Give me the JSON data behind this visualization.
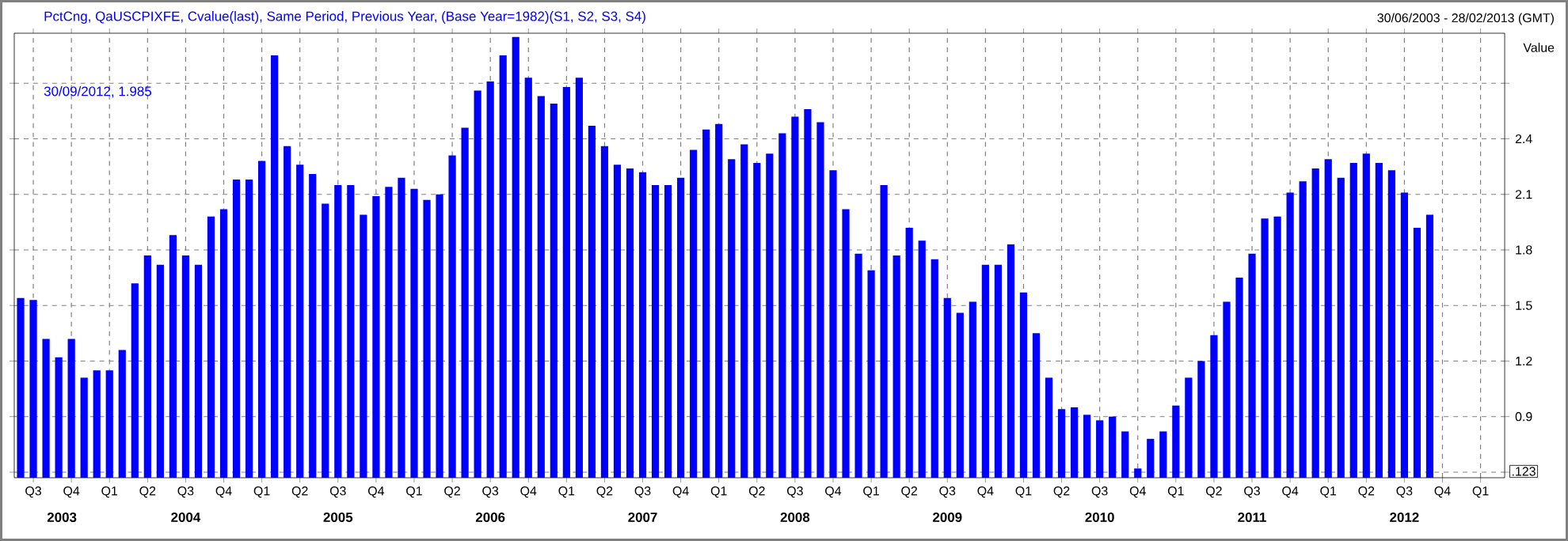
{
  "chart_data": {
    "type": "bar",
    "title": "PctCng, QaUSCPIXFE, Cvalue(last), Same Period, Previous Year, (Base Year=1982)(S1, S2, S3, S4)",
    "subtitle": "30/09/2012, 1.985",
    "ylabel": "Value",
    "color": "#0000ff",
    "x": [
      "2003-06",
      "2003-07",
      "2003-08",
      "2003-09",
      "2003-10",
      "2003-11",
      "2003-12",
      "2004-01",
      "2004-02",
      "2004-03",
      "2004-04",
      "2004-05",
      "2004-06",
      "2004-07",
      "2004-08",
      "2004-09",
      "2004-10",
      "2004-11",
      "2004-12",
      "2005-01",
      "2005-02",
      "2005-03",
      "2005-04",
      "2005-05",
      "2005-06",
      "2005-07",
      "2005-08",
      "2005-09",
      "2005-10",
      "2005-11",
      "2005-12",
      "2006-01",
      "2006-02",
      "2006-03",
      "2006-04",
      "2006-05",
      "2006-06",
      "2006-07",
      "2006-08",
      "2006-09",
      "2006-10",
      "2006-11",
      "2006-12",
      "2007-01",
      "2007-02",
      "2007-03",
      "2007-04",
      "2007-05",
      "2007-06",
      "2007-07",
      "2007-08",
      "2007-09",
      "2007-10",
      "2007-11",
      "2007-12",
      "2008-01",
      "2008-02",
      "2008-03",
      "2008-04",
      "2008-05",
      "2008-06",
      "2008-07",
      "2008-08",
      "2008-09",
      "2008-10",
      "2008-11",
      "2008-12",
      "2009-01",
      "2009-02",
      "2009-03",
      "2009-04",
      "2009-05",
      "2009-06",
      "2009-07",
      "2009-08",
      "2009-09",
      "2009-10",
      "2009-11",
      "2009-12",
      "2010-01",
      "2010-02",
      "2010-03",
      "2010-04",
      "2010-05",
      "2010-06",
      "2010-07",
      "2010-08",
      "2010-09",
      "2010-10",
      "2010-11",
      "2010-12",
      "2011-01",
      "2011-02",
      "2011-03",
      "2011-04",
      "2011-05",
      "2011-06",
      "2011-07",
      "2011-08",
      "2011-09",
      "2011-10",
      "2011-11",
      "2011-12",
      "2012-01",
      "2012-02",
      "2012-03",
      "2012-04",
      "2012-05",
      "2012-06",
      "2012-07",
      "2012-08",
      "2012-09"
    ],
    "values": [
      1.54,
      1.53,
      1.32,
      1.22,
      1.32,
      1.11,
      1.15,
      1.15,
      1.26,
      1.62,
      1.77,
      1.72,
      1.88,
      1.77,
      1.72,
      1.98,
      2.02,
      2.18,
      2.18,
      2.28,
      2.85,
      2.36,
      2.26,
      2.21,
      2.05,
      2.15,
      2.15,
      1.99,
      2.09,
      2.14,
      2.19,
      2.13,
      2.07,
      2.1,
      2.31,
      2.46,
      2.66,
      2.71,
      2.85,
      2.95,
      2.73,
      2.63,
      2.59,
      2.68,
      2.73,
      2.47,
      2.36,
      2.26,
      2.24,
      2.22,
      2.15,
      2.15,
      2.19,
      2.34,
      2.45,
      2.48,
      2.29,
      2.37,
      2.27,
      2.32,
      2.43,
      2.52,
      2.56,
      2.49,
      2.23,
      2.02,
      1.78,
      1.69,
      2.15,
      1.77,
      1.92,
      1.85,
      1.75,
      1.54,
      1.46,
      1.52,
      1.72,
      1.72,
      1.83,
      1.57,
      1.35,
      1.11,
      0.94,
      0.95,
      0.91,
      0.88,
      0.9,
      0.82,
      0.62,
      0.78,
      0.82,
      0.96,
      1.11,
      1.2,
      1.34,
      1.52,
      1.65,
      1.78,
      1.97,
      1.98,
      2.11,
      2.17,
      2.24,
      2.29,
      2.19,
      2.27,
      2.32,
      2.27,
      2.23,
      2.11,
      1.92,
      1.99
    ],
    "xlim": [
      "2003-05-16",
      "2013-02-28"
    ],
    "ylim": [
      0.57,
      2.97
    ],
    "xticks": [
      {
        "value": "2003-07",
        "label": "Q3"
      },
      {
        "value": "2003-10",
        "label": "Q4"
      },
      {
        "value": "2004-01",
        "label": "Q1"
      },
      {
        "value": "2004-04",
        "label": "Q2"
      },
      {
        "value": "2004-07",
        "label": "Q3"
      },
      {
        "value": "2004-10",
        "label": "Q4"
      },
      {
        "value": "2005-01",
        "label": "Q1"
      },
      {
        "value": "2005-04",
        "label": "Q2"
      },
      {
        "value": "2005-07",
        "label": "Q3"
      },
      {
        "value": "2005-10",
        "label": "Q4"
      },
      {
        "value": "2006-01",
        "label": "Q1"
      },
      {
        "value": "2006-04",
        "label": "Q2"
      },
      {
        "value": "2006-07",
        "label": "Q3"
      },
      {
        "value": "2006-10",
        "label": "Q4"
      },
      {
        "value": "2007-01",
        "label": "Q1"
      },
      {
        "value": "2007-04",
        "label": "Q2"
      },
      {
        "value": "2007-07",
        "label": "Q3"
      },
      {
        "value": "2007-10",
        "label": "Q4"
      },
      {
        "value": "2008-01",
        "label": "Q1"
      },
      {
        "value": "2008-04",
        "label": "Q2"
      },
      {
        "value": "2008-07",
        "label": "Q3"
      },
      {
        "value": "2008-10",
        "label": "Q4"
      },
      {
        "value": "2009-01",
        "label": "Q1"
      },
      {
        "value": "2009-04",
        "label": "Q2"
      },
      {
        "value": "2009-07",
        "label": "Q3"
      },
      {
        "value": "2009-10",
        "label": "Q4"
      },
      {
        "value": "2010-01",
        "label": "Q1"
      },
      {
        "value": "2010-04",
        "label": "Q2"
      },
      {
        "value": "2010-07",
        "label": "Q3"
      },
      {
        "value": "2010-10",
        "label": "Q4"
      },
      {
        "value": "2011-01",
        "label": "Q1"
      },
      {
        "value": "2011-04",
        "label": "Q2"
      },
      {
        "value": "2011-07",
        "label": "Q3"
      },
      {
        "value": "2011-10",
        "label": "Q4"
      },
      {
        "value": "2012-01",
        "label": "Q1"
      },
      {
        "value": "2012-04",
        "label": "Q2"
      },
      {
        "value": "2012-07",
        "label": "Q3"
      },
      {
        "value": "2012-10",
        "label": "Q4"
      },
      {
        "value": "2013-01",
        "label": "Q1"
      }
    ],
    "yticks": [
      {
        "value": 0.6,
        "label": null
      },
      0.9,
      1.2,
      1.5,
      1.8,
      2.1,
      2.4,
      {
        "value": 2.7,
        "label": null
      }
    ],
    "grid": true,
    "annotations": [
      "30/06/2003 - 28/02/2013 (GMT)",
      ".123",
      "2003",
      "2004",
      "2005",
      "2006",
      "2007",
      "2008",
      "2009",
      "2010",
      "2011",
      "2012"
    ]
  }
}
